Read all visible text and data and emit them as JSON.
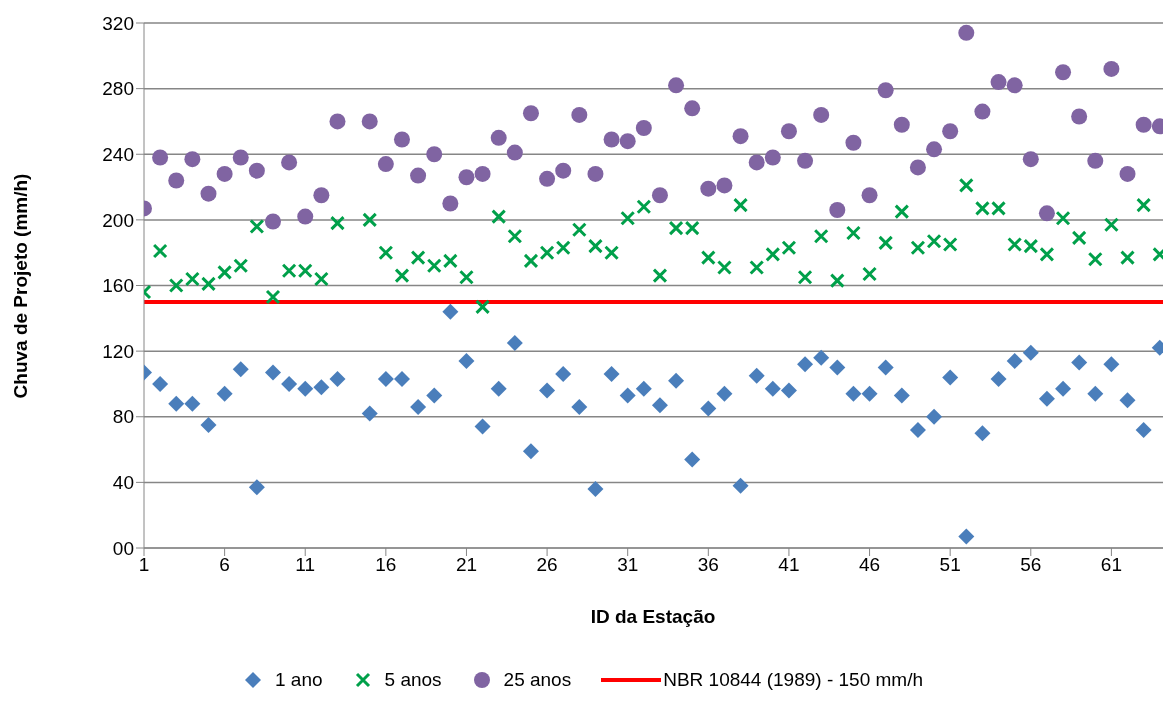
{
  "chart_data": {
    "type": "scatter",
    "xlabel": "ID da Estação",
    "ylabel": "Chuva de Projeto (mm/h)",
    "x": [
      1,
      2,
      3,
      4,
      5,
      6,
      7,
      8,
      9,
      10,
      11,
      12,
      13,
      15,
      16,
      17,
      18,
      19,
      20,
      21,
      22,
      23,
      24,
      25,
      26,
      27,
      28,
      29,
      30,
      31,
      32,
      33,
      34,
      35,
      36,
      37,
      38,
      39,
      40,
      41,
      42,
      43,
      44,
      45,
      46,
      47,
      48,
      49,
      50,
      51,
      52,
      53,
      54,
      55,
      56,
      57,
      58,
      59,
      60,
      61,
      62,
      63,
      64
    ],
    "series": [
      {
        "name": "1 ano",
        "color": "#4a7ebb",
        "marker": "diamond",
        "values": [
          107,
          100,
          88,
          88,
          75,
          94,
          109,
          37,
          107,
          100,
          97,
          98,
          103,
          82,
          103,
          103,
          86,
          93,
          144,
          114,
          74,
          97,
          125,
          59,
          96,
          106,
          86,
          36,
          106,
          93,
          97,
          87,
          102,
          54,
          85,
          94,
          38,
          105,
          97,
          96,
          112,
          116,
          110,
          94,
          94,
          110,
          93,
          72,
          80,
          104,
          7,
          70,
          103,
          114,
          119,
          91,
          97,
          113,
          94,
          112,
          90,
          72,
          122
        ]
      },
      {
        "name": "5 anos",
        "color": "#00a04a",
        "marker": "cross",
        "values": [
          156,
          181,
          160,
          164,
          161,
          168,
          172,
          196,
          153,
          169,
          169,
          164,
          198,
          200,
          180,
          166,
          177,
          172,
          175,
          165,
          147,
          202,
          190,
          175,
          180,
          183,
          194,
          184,
          180,
          201,
          208,
          166,
          195,
          195,
          177,
          171,
          209,
          171,
          179,
          183,
          165,
          190,
          163,
          192,
          167,
          186,
          205,
          183,
          187,
          185,
          221,
          207,
          207,
          185,
          184,
          179,
          201,
          189,
          176,
          197,
          177,
          209,
          179
        ]
      },
      {
        "name": "25 anos",
        "color": "#8064a2",
        "marker": "circle",
        "values": [
          207,
          238,
          224,
          237,
          216,
          228,
          238,
          230,
          199,
          235,
          202,
          215,
          260,
          260,
          234,
          249,
          227,
          240,
          210,
          226,
          228,
          250,
          241,
          265,
          225,
          230,
          264,
          228,
          249,
          248,
          256,
          215,
          282,
          268,
          219,
          221,
          251,
          235,
          238,
          254,
          236,
          264,
          206,
          247,
          215,
          279,
          258,
          232,
          243,
          254,
          314,
          266,
          284,
          282,
          237,
          204,
          290,
          263,
          236,
          292,
          228,
          258,
          257
        ]
      }
    ],
    "ref_lines": [
      {
        "axis": "y",
        "value": 150,
        "label": "NBR 10844 (1989) - 150 mm/h",
        "color": "#ff0000"
      }
    ],
    "xlim": [
      1,
      64.2
    ],
    "xticks": [
      1,
      6,
      11,
      16,
      21,
      26,
      31,
      36,
      41,
      46,
      51,
      56,
      61
    ],
    "ylim": [
      0,
      320
    ],
    "yticks": [
      {
        "value": 0,
        "label": "00"
      },
      40,
      80,
      120,
      160,
      200,
      240,
      280,
      320
    ],
    "grid": "y",
    "legend": "bottom"
  }
}
